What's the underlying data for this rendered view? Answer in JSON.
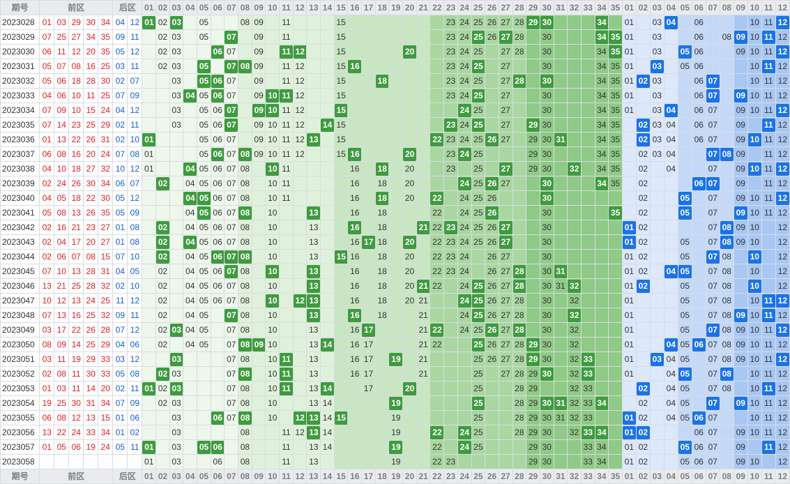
{
  "header": {
    "issue": "期号",
    "front": "前区",
    "back": "后区"
  },
  "front_numbers": [
    "01",
    "02",
    "03",
    "04",
    "05",
    "06",
    "07",
    "08",
    "09",
    "10",
    "11",
    "12",
    "13",
    "14",
    "15",
    "16",
    "17",
    "18",
    "19",
    "20",
    "21",
    "22",
    "23",
    "24",
    "25",
    "26",
    "27",
    "28",
    "29",
    "30",
    "31",
    "32",
    "33",
    "34",
    "35"
  ],
  "back_numbers": [
    "01",
    "02",
    "03",
    "04",
    "05",
    "06",
    "07",
    "08",
    "09",
    "10",
    "11",
    "12"
  ],
  "colors": {
    "front_hit": "#3e9b3e",
    "back_hit": "#1a73e8",
    "front_text": "#e02020",
    "back_text": "#1060d0"
  },
  "rows": [
    {
      "issue": "2023028",
      "front": [
        1,
        3,
        29,
        30,
        34
      ],
      "back": [
        4,
        12
      ],
      "fshow": [
        2,
        5,
        8,
        9,
        11,
        15,
        23,
        24,
        25,
        26,
        27,
        28,
        30
      ],
      "bshow": [
        1,
        3,
        6,
        10,
        11
      ]
    },
    {
      "issue": "2023029",
      "front": [
        7,
        25,
        27,
        34,
        35
      ],
      "back": [
        9,
        11
      ],
      "fshow": [
        2,
        3,
        5,
        9,
        11,
        15,
        23,
        24,
        25,
        26,
        27,
        28,
        30
      ],
      "bshow": [
        1,
        3,
        6,
        8,
        10,
        12
      ]
    },
    {
      "issue": "2023030",
      "front": [
        6,
        11,
        12,
        20,
        35
      ],
      "back": [
        5,
        12
      ],
      "fshow": [
        2,
        3,
        7,
        9,
        11,
        15,
        23,
        24,
        25,
        27,
        28,
        30,
        34
      ],
      "bshow": [
        1,
        3,
        6,
        9,
        10,
        11,
        12
      ]
    },
    {
      "issue": "2023031",
      "front": [
        5,
        7,
        8,
        16,
        25
      ],
      "back": [
        3,
        11
      ],
      "fshow": [
        2,
        3,
        7,
        9,
        11,
        12,
        15,
        23,
        24,
        25,
        27,
        30,
        34,
        35
      ],
      "bshow": [
        1,
        3,
        5,
        6,
        10,
        11,
        12
      ]
    },
    {
      "issue": "2023032",
      "front": [
        5,
        6,
        18,
        28,
        30
      ],
      "back": [
        2,
        7
      ],
      "fshow": [
        3,
        7,
        9,
        11,
        12,
        15,
        23,
        24,
        25,
        27,
        30,
        34,
        35
      ],
      "bshow": [
        1,
        3,
        6,
        10,
        11,
        12
      ]
    },
    {
      "issue": "2023033",
      "front": [
        4,
        6,
        10,
        11,
        25
      ],
      "back": [
        7,
        9
      ],
      "fshow": [
        3,
        5,
        6,
        7,
        9,
        11,
        12,
        15,
        23,
        24,
        25,
        27,
        30,
        34,
        35
      ],
      "bshow": [
        1,
        3,
        6,
        10,
        11,
        12
      ]
    },
    {
      "issue": "2023034",
      "front": [
        7,
        9,
        10,
        15,
        24
      ],
      "back": [
        4,
        12
      ],
      "fshow": [
        3,
        5,
        6,
        7,
        9,
        10,
        11,
        12,
        15,
        24,
        25,
        27,
        30,
        34,
        35
      ],
      "bshow": [
        1,
        3,
        6,
        7,
        9,
        10,
        11,
        12
      ]
    },
    {
      "issue": "2023035",
      "front": [
        7,
        14,
        23,
        25,
        29
      ],
      "back": [
        2,
        11
      ],
      "fshow": [
        3,
        5,
        6,
        7,
        9,
        10,
        11,
        12,
        15,
        24,
        25,
        27,
        30,
        34,
        35
      ],
      "bshow": [
        3,
        4,
        6,
        7,
        9,
        11,
        12
      ]
    },
    {
      "issue": "2023036",
      "front": [
        1,
        13,
        22,
        26,
        31
      ],
      "back": [
        2,
        10
      ],
      "fshow": [
        5,
        6,
        7,
        9,
        10,
        11,
        12,
        15,
        23,
        24,
        25,
        27,
        29,
        30,
        34,
        35
      ],
      "bshow": [
        2,
        3,
        4,
        6,
        7,
        9,
        11,
        12
      ]
    },
    {
      "issue": "2023037",
      "front": [
        6,
        8,
        16,
        20,
        24
      ],
      "back": [
        7,
        8
      ],
      "fshow": [
        1,
        5,
        6,
        7,
        9,
        10,
        11,
        12,
        15,
        23,
        25,
        29,
        30,
        34,
        35
      ],
      "bshow": [
        2,
        3,
        4,
        7,
        9,
        11,
        12
      ]
    },
    {
      "issue": "2023038",
      "front": [
        4,
        10,
        18,
        27,
        32
      ],
      "back": [
        10,
        12
      ],
      "fshow": [
        1,
        5,
        6,
        7,
        8,
        10,
        11,
        16,
        20,
        23,
        25,
        29,
        30,
        34,
        35
      ],
      "bshow": [
        2,
        4,
        7,
        9,
        11,
        12
      ]
    },
    {
      "issue": "2023039",
      "front": [
        2,
        24,
        26,
        30,
        34
      ],
      "back": [
        6,
        7
      ],
      "fshow": [
        4,
        5,
        6,
        7,
        8,
        10,
        11,
        16,
        18,
        20,
        24,
        25,
        27,
        35
      ],
      "bshow": [
        2,
        7,
        9,
        11,
        12
      ]
    },
    {
      "issue": "2023040",
      "front": [
        4,
        5,
        18,
        22,
        30
      ],
      "back": [
        5,
        12
      ],
      "fshow": [
        4,
        5,
        6,
        7,
        8,
        10,
        11,
        16,
        18,
        20,
        24,
        25,
        26,
        30
      ],
      "bshow": [
        2,
        7,
        9,
        10,
        11,
        12
      ]
    },
    {
      "issue": "2023041",
      "front": [
        5,
        8,
        13,
        26,
        35
      ],
      "back": [
        5,
        9
      ],
      "fshow": [
        4,
        5,
        6,
        7,
        8,
        10,
        16,
        18,
        22,
        24,
        25,
        26,
        30
      ],
      "bshow": [
        2,
        7,
        9,
        10,
        11,
        12
      ]
    },
    {
      "issue": "2023042",
      "front": [
        2,
        16,
        21,
        23,
        27
      ],
      "back": [
        1,
        8
      ],
      "fshow": [
        4,
        5,
        6,
        7,
        8,
        10,
        13,
        18,
        22,
        24,
        25,
        26,
        30
      ],
      "bshow": [
        2,
        7,
        9,
        10,
        12
      ]
    },
    {
      "issue": "2023043",
      "front": [
        2,
        4,
        17,
        20,
        27
      ],
      "back": [
        1,
        8
      ],
      "fshow": [
        2,
        4,
        5,
        6,
        7,
        8,
        10,
        13,
        16,
        18,
        22,
        23,
        24,
        25,
        26,
        27,
        30
      ],
      "bshow": [
        2,
        5,
        7,
        8,
        9,
        10,
        12
      ]
    },
    {
      "issue": "2023044",
      "front": [
        2,
        6,
        7,
        8,
        15
      ],
      "back": [
        7,
        10
      ],
      "fshow": [
        2,
        4,
        5,
        7,
        8,
        10,
        13,
        16,
        18,
        20,
        22,
        23,
        24,
        26,
        27,
        30
      ],
      "bshow": [
        1,
        2,
        5,
        7,
        8,
        10,
        12
      ]
    },
    {
      "issue": "2023045",
      "front": [
        7,
        10,
        13,
        28,
        31
      ],
      "back": [
        4,
        5
      ],
      "fshow": [
        2,
        4,
        5,
        6,
        7,
        8,
        13,
        16,
        18,
        20,
        22,
        23,
        24,
        26,
        27,
        30
      ],
      "bshow": [
        1,
        2,
        5,
        7,
        8,
        10,
        12
      ]
    },
    {
      "issue": "2023046",
      "front": [
        13,
        21,
        25,
        28,
        32
      ],
      "back": [
        2,
        10
      ],
      "fshow": [
        2,
        4,
        5,
        6,
        7,
        8,
        10,
        13,
        16,
        18,
        20,
        22,
        24,
        26,
        27,
        30,
        31
      ],
      "bshow": [
        1,
        5,
        7,
        8,
        10,
        12
      ]
    },
    {
      "issue": "2023047",
      "front": [
        10,
        12,
        13,
        24,
        25
      ],
      "back": [
        11,
        12
      ],
      "fshow": [
        2,
        4,
        5,
        6,
        7,
        8,
        10,
        13,
        16,
        18,
        20,
        21,
        24,
        26,
        27,
        28,
        30,
        32
      ],
      "bshow": [
        1,
        5,
        7,
        8,
        10,
        12
      ]
    },
    {
      "issue": "2023048",
      "front": [
        7,
        13,
        16,
        25,
        32
      ],
      "back": [
        9,
        11
      ],
      "fshow": [
        2,
        4,
        5,
        7,
        8,
        10,
        13,
        18,
        21,
        24,
        25,
        26,
        27,
        28,
        30,
        32
      ],
      "bshow": [
        1,
        5,
        7,
        8,
        10,
        12
      ]
    },
    {
      "issue": "2023049",
      "front": [
        3,
        17,
        22,
        26,
        28
      ],
      "back": [
        7,
        12
      ],
      "fshow": [
        2,
        4,
        5,
        7,
        8,
        10,
        13,
        16,
        21,
        24,
        25,
        26,
        27,
        28,
        30,
        32
      ],
      "bshow": [
        1,
        5,
        7,
        8,
        9,
        10,
        11,
        12
      ]
    },
    {
      "issue": "2023050",
      "front": [
        8,
        9,
        14,
        25,
        29
      ],
      "back": [
        4,
        6
      ],
      "fshow": [
        2,
        4,
        5,
        7,
        8,
        10,
        13,
        16,
        17,
        21,
        22,
        25,
        26,
        27,
        28,
        30,
        32
      ],
      "bshow": [
        1,
        5,
        7,
        8,
        9,
        10,
        11,
        12
      ]
    },
    {
      "issue": "2023051",
      "front": [
        3,
        11,
        19,
        29,
        33
      ],
      "back": [
        3,
        12
      ],
      "fshow": [
        7,
        8,
        10,
        13,
        16,
        17,
        21,
        25,
        26,
        27,
        28,
        30,
        32
      ],
      "bshow": [
        1,
        4,
        5,
        7,
        8,
        9,
        10,
        11,
        12
      ]
    },
    {
      "issue": "2023052",
      "front": [
        2,
        8,
        11,
        30,
        33
      ],
      "back": [
        5,
        8
      ],
      "fshow": [
        2,
        3,
        7,
        8,
        10,
        13,
        16,
        17,
        21,
        25,
        27,
        28,
        29,
        30,
        32
      ],
      "bshow": [
        1,
        4,
        5,
        7,
        8,
        10,
        11,
        12
      ]
    },
    {
      "issue": "2023053",
      "front": [
        1,
        3,
        11,
        14,
        20
      ],
      "back": [
        2,
        11
      ],
      "fshow": [
        2,
        3,
        7,
        8,
        10,
        11,
        13,
        17,
        25,
        28,
        29,
        32,
        33
      ],
      "bshow": [
        4,
        5,
        7,
        8,
        10,
        11,
        12
      ]
    },
    {
      "issue": "2023054",
      "front": [
        19,
        25,
        30,
        31,
        34
      ],
      "back": [
        7,
        9
      ],
      "fshow": [
        2,
        3,
        7,
        8,
        10,
        13,
        14,
        25,
        28,
        29,
        32,
        33
      ],
      "bshow": [
        2,
        4,
        5,
        7,
        10,
        11,
        12
      ]
    },
    {
      "issue": "2023055",
      "front": [
        6,
        8,
        12,
        13,
        15
      ],
      "back": [
        1,
        6
      ],
      "fshow": [
        3,
        7,
        8,
        10,
        13,
        14,
        19,
        25,
        28,
        29,
        30,
        31,
        32,
        33
      ],
      "bshow": [
        2,
        4,
        5,
        7,
        10,
        11,
        12
      ]
    },
    {
      "issue": "2023056",
      "front": [
        13,
        22,
        24,
        33,
        34
      ],
      "back": [
        1,
        2
      ],
      "fshow": [
        3,
        8,
        11,
        12,
        13,
        14,
        19,
        25,
        28,
        29,
        30,
        32,
        33
      ],
      "bshow": [
        2,
        6,
        7,
        9,
        10,
        11,
        12
      ]
    },
    {
      "issue": "2023057",
      "front": [
        1,
        5,
        6,
        19,
        24
      ],
      "back": [
        5,
        11
      ],
      "fshow": [
        3,
        8,
        11,
        13,
        14,
        19,
        22,
        24,
        25,
        29,
        30,
        33,
        34
      ],
      "bshow": [
        1,
        2,
        6,
        7,
        9,
        11,
        12
      ]
    },
    {
      "issue": "2023058",
      "front": [],
      "back": [],
      "fshow": [
        1,
        3,
        6,
        8,
        11,
        13,
        19,
        22,
        23,
        29,
        30,
        33,
        34
      ],
      "bshow": [
        1,
        2,
        5,
        6,
        7,
        9,
        10,
        12
      ]
    }
  ]
}
